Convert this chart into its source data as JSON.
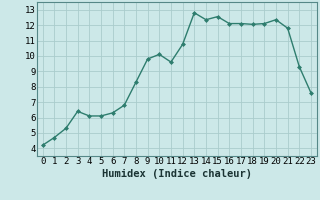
{
  "x": [
    0,
    1,
    2,
    3,
    4,
    5,
    6,
    7,
    8,
    9,
    10,
    11,
    12,
    13,
    14,
    15,
    16,
    17,
    18,
    19,
    20,
    21,
    22,
    23
  ],
  "y": [
    4.2,
    4.7,
    5.3,
    6.4,
    6.1,
    6.1,
    6.3,
    6.8,
    8.3,
    9.8,
    10.1,
    9.6,
    10.75,
    12.8,
    12.35,
    12.55,
    12.1,
    12.1,
    12.05,
    12.1,
    12.35,
    11.8,
    9.3,
    7.6
  ],
  "line_color": "#2e7d6e",
  "marker": "D",
  "marker_size": 2.0,
  "bg_color": "#cce8e8",
  "grid_color": "#aacccc",
  "xlabel": "Humidex (Indice chaleur)",
  "xlim": [
    -0.5,
    23.5
  ],
  "ylim": [
    3.5,
    13.5
  ],
  "yticks": [
    4,
    5,
    6,
    7,
    8,
    9,
    10,
    11,
    12,
    13
  ],
  "xticks": [
    0,
    1,
    2,
    3,
    4,
    5,
    6,
    7,
    8,
    9,
    10,
    11,
    12,
    13,
    14,
    15,
    16,
    17,
    18,
    19,
    20,
    21,
    22,
    23
  ],
  "xlabel_fontsize": 7.5,
  "tick_fontsize": 6.5,
  "line_width": 1.0
}
